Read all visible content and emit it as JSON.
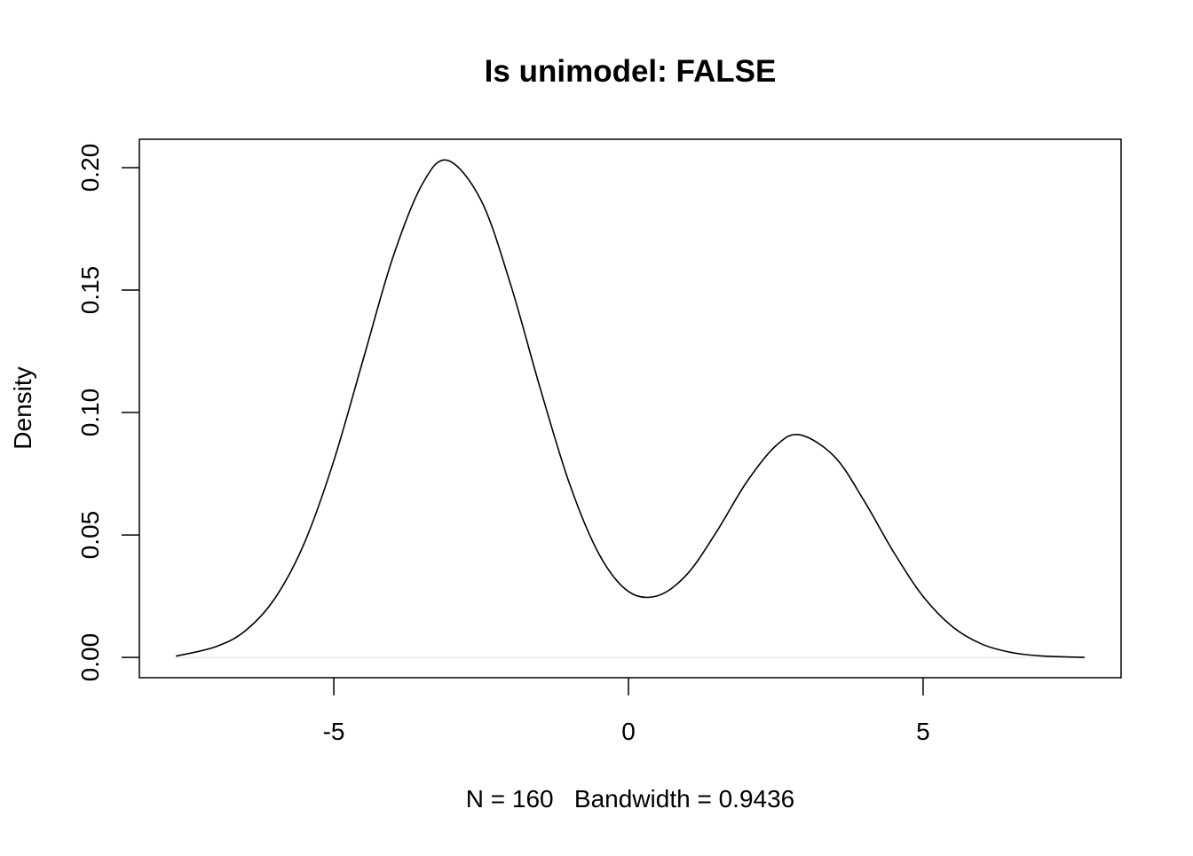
{
  "chart_data": {
    "type": "line",
    "title": "Is unimodel: FALSE",
    "xlabel": "N = 160   Bandwidth = 0.9436",
    "ylabel": "Density",
    "xlim": [
      -8.3,
      8.36
    ],
    "ylim": [
      -0.0083,
      0.2116
    ],
    "grid": false,
    "zero_line": true,
    "x_ticks": [
      -5,
      0,
      5
    ],
    "x_tick_labels": [
      "-5",
      "0",
      "5"
    ],
    "y_ticks": [
      0.0,
      0.05,
      0.1,
      0.15,
      0.2
    ],
    "y_tick_labels": [
      "0.00",
      "0.05",
      "0.10",
      "0.15",
      "0.20"
    ],
    "line_color": "#000000",
    "zero_line_color": "#e0e0e0",
    "series": [
      {
        "x": [
          -7.68,
          -7,
          -6.5,
          -6,
          -5.5,
          -5,
          -4.5,
          -4,
          -3.5,
          -3.07,
          -2.5,
          -2,
          -1.5,
          -1,
          -0.5,
          0,
          0.5,
          1,
          1.5,
          2,
          2.5,
          2.91,
          3.5,
          4,
          4.5,
          5,
          5.5,
          6,
          6.5,
          7,
          7.74
        ],
        "y": [
          0.0005,
          0.0044,
          0.0109,
          0.0241,
          0.0467,
          0.0803,
          0.1218,
          0.1632,
          0.1932,
          0.203,
          0.1866,
          0.1523,
          0.1101,
          0.0709,
          0.0422,
          0.0269,
          0.0252,
          0.0341,
          0.0515,
          0.0714,
          0.0864,
          0.0909,
          0.0819,
          0.0639,
          0.043,
          0.0249,
          0.0125,
          0.0054,
          0.002,
          0.0006,
          0.0
        ]
      }
    ]
  }
}
